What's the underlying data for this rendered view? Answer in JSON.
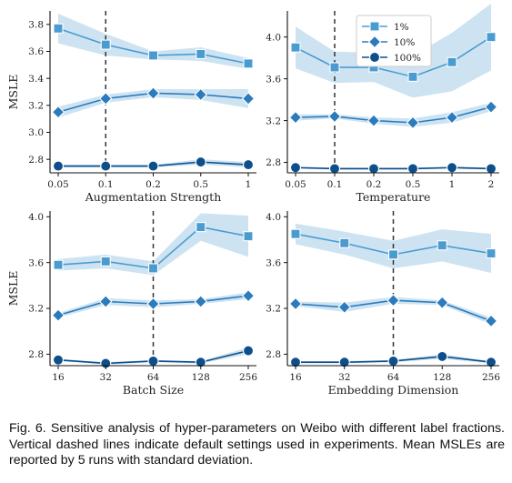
{
  "caption": "Fig. 6. Sensitive analysis of hyper-parameters on Weibo with different label fractions. Vertical dashed lines indicate default settings used in experiments. Mean MSLEs are reported by 5 runs with standard deviation.",
  "legend": [
    {
      "label": "1%",
      "marker": "square"
    },
    {
      "label": "10%",
      "marker": "diamond"
    },
    {
      "label": "100%",
      "marker": "circle"
    }
  ],
  "chart_data": [
    {
      "type": "line",
      "xlabel": "Augmentation Strength",
      "ylabel": "MSLE",
      "categories": [
        "0.05",
        "0.1",
        "0.2",
        "0.5",
        "1"
      ],
      "default_index": 1,
      "ylim": [
        2.7,
        3.9
      ],
      "yticks": [
        2.8,
        3.0,
        3.2,
        3.4,
        3.6,
        3.8
      ],
      "series": [
        {
          "name": "1%",
          "values": [
            3.77,
            3.65,
            3.57,
            3.58,
            3.51
          ],
          "std": [
            0.11,
            0.08,
            0.03,
            0.05,
            0.04
          ]
        },
        {
          "name": "10%",
          "values": [
            3.15,
            3.25,
            3.29,
            3.28,
            3.25
          ],
          "std": [
            0.04,
            0.03,
            0.03,
            0.04,
            0.07
          ]
        },
        {
          "name": "100%",
          "values": [
            2.75,
            2.75,
            2.75,
            2.78,
            2.76
          ],
          "std": [
            0.01,
            0.01,
            0.01,
            0.02,
            0.02
          ]
        }
      ]
    },
    {
      "type": "line",
      "xlabel": "Temperature",
      "ylabel": "",
      "categories": [
        "0.05",
        "0.1",
        "0.2",
        "0.5",
        "1",
        "2"
      ],
      "default_index": 1,
      "ylim": [
        2.7,
        4.25
      ],
      "yticks": [
        2.8,
        3.2,
        3.6,
        4.0
      ],
      "series": [
        {
          "name": "1%",
          "values": [
            3.9,
            3.71,
            3.71,
            3.62,
            3.76,
            4.0
          ],
          "std": [
            0.2,
            0.15,
            0.14,
            0.2,
            0.28,
            0.32
          ]
        },
        {
          "name": "10%",
          "values": [
            3.23,
            3.24,
            3.2,
            3.18,
            3.23,
            3.33
          ],
          "std": [
            0.03,
            0.02,
            0.03,
            0.04,
            0.05,
            0.04
          ]
        },
        {
          "name": "100%",
          "values": [
            2.75,
            2.74,
            2.74,
            2.74,
            2.75,
            2.74
          ],
          "std": [
            0.01,
            0.01,
            0.01,
            0.01,
            0.01,
            0.01
          ]
        }
      ]
    },
    {
      "type": "line",
      "xlabel": "Batch Size",
      "ylabel": "MSLE",
      "categories": [
        "16",
        "32",
        "64",
        "128",
        "256"
      ],
      "default_index": 2,
      "ylim": [
        2.7,
        4.05
      ],
      "yticks": [
        2.8,
        3.2,
        3.6,
        4.0
      ],
      "series": [
        {
          "name": "1%",
          "values": [
            3.58,
            3.61,
            3.55,
            3.91,
            3.83
          ],
          "std": [
            0.05,
            0.06,
            0.06,
            0.12,
            0.18
          ]
        },
        {
          "name": "10%",
          "values": [
            3.14,
            3.26,
            3.24,
            3.26,
            3.31
          ],
          "std": [
            0.02,
            0.03,
            0.03,
            0.02,
            0.03
          ]
        },
        {
          "name": "100%",
          "values": [
            2.75,
            2.72,
            2.74,
            2.73,
            2.83
          ],
          "std": [
            0.01,
            0.01,
            0.01,
            0.01,
            0.03
          ]
        }
      ]
    },
    {
      "type": "line",
      "xlabel": "Embedding Dimension",
      "ylabel": "",
      "categories": [
        "16",
        "32",
        "64",
        "128",
        "256"
      ],
      "default_index": 2,
      "ylim": [
        2.7,
        4.05
      ],
      "yticks": [
        2.8,
        3.2,
        3.6,
        4.0
      ],
      "series": [
        {
          "name": "1%",
          "values": [
            3.85,
            3.77,
            3.67,
            3.75,
            3.68
          ],
          "std": [
            0.09,
            0.1,
            0.12,
            0.14,
            0.17
          ]
        },
        {
          "name": "10%",
          "values": [
            3.24,
            3.21,
            3.27,
            3.25,
            3.09
          ],
          "std": [
            0.02,
            0.04,
            0.03,
            0.02,
            0.03
          ]
        },
        {
          "name": "100%",
          "values": [
            2.73,
            2.73,
            2.74,
            2.78,
            2.73
          ],
          "std": [
            0.01,
            0.01,
            0.01,
            0.02,
            0.01
          ]
        }
      ]
    }
  ],
  "colors": {
    "s1": "#4a9cd0",
    "s2": "#2b7bbd",
    "s3": "#0d4f8c",
    "band": "#9cc8e5",
    "axis": "#111111",
    "dashed": "#333333"
  }
}
